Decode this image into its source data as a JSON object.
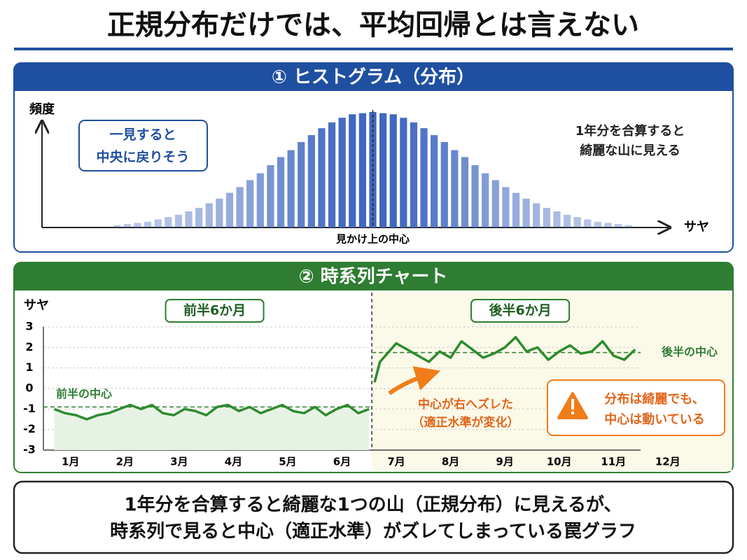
{
  "title": "正規分布だけでは、平均回帰とは言えない",
  "chart_data": [
    {
      "type": "bar",
      "panel_title": "① ヒストグラム（分布）",
      "y_label": "頻度",
      "x_label": "サヤ",
      "color": "#3f66c0",
      "values": [
        2,
        3,
        4,
        5,
        7,
        9,
        11,
        14,
        17,
        21,
        25,
        30,
        35,
        41,
        47,
        54,
        61,
        67,
        74,
        80,
        86,
        91,
        95,
        98,
        99,
        100,
        99,
        98,
        95,
        91,
        86,
        80,
        74,
        67,
        61,
        54,
        47,
        41,
        35,
        30,
        25,
        21,
        17,
        14,
        11,
        9,
        7,
        5,
        4,
        3,
        2
      ],
      "center_label": "見かけ上の中心",
      "callout": [
        "一見すると",
        "中央に戻りそう"
      ],
      "note": [
        "1年分を合算すると",
        "綺麗な山に見える"
      ]
    },
    {
      "type": "line",
      "panel_title": "② 時系列チャート",
      "y_label": "サヤ",
      "ylim": [
        -3,
        3
      ],
      "yticks": [
        -3,
        -2,
        -1,
        0,
        1,
        2,
        3
      ],
      "xlim": [
        0.5,
        11.5
      ],
      "xticks": [
        {
          "value": 1,
          "label": "1月"
        },
        {
          "value": 2,
          "label": "2月"
        },
        {
          "value": 3,
          "label": "3月"
        },
        {
          "value": 4,
          "label": "4月"
        },
        {
          "value": 5,
          "label": "5月"
        },
        {
          "value": 6,
          "label": "6月"
        },
        {
          "value": 7,
          "label": "7月"
        },
        {
          "value": 8,
          "label": "8月"
        },
        {
          "value": 9,
          "label": "9月"
        },
        {
          "value": 10,
          "label": "10月"
        },
        {
          "value": 11,
          "label": "11月"
        },
        {
          "value": 12,
          "label": "12月"
        }
      ],
      "grid": true,
      "series": [
        {
          "name": "前半6か月",
          "color": "#2e8b2e",
          "center": {
            "value": -0.9,
            "label": "前半の中心"
          },
          "x": [
            0.7,
            0.9,
            1.1,
            1.3,
            1.5,
            1.7,
            1.9,
            2.1,
            2.3,
            2.5,
            2.7,
            2.9,
            3.1,
            3.3,
            3.5,
            3.7,
            3.9,
            4.1,
            4.3,
            4.5,
            4.7,
            4.9,
            5.1,
            5.3,
            5.5,
            5.7,
            5.9,
            6.1,
            6.3,
            6.5
          ],
          "values": [
            -1.0,
            -1.2,
            -1.3,
            -1.5,
            -1.3,
            -1.2,
            -1.0,
            -0.8,
            -1.0,
            -0.8,
            -1.2,
            -1.3,
            -1.0,
            -1.1,
            -1.3,
            -0.9,
            -0.8,
            -1.1,
            -0.9,
            -1.2,
            -1.0,
            -0.8,
            -1.1,
            -1.2,
            -0.9,
            -1.3,
            -1.0,
            -0.8,
            -1.2,
            -1.0
          ]
        },
        {
          "name": "後半6か月",
          "color": "#2e8b2e",
          "center": {
            "value": 1.75,
            "label": "後半の中心"
          },
          "x": [
            6.6,
            6.7,
            6.8,
            7.0,
            7.2,
            7.4,
            7.6,
            7.8,
            8.0,
            8.2,
            8.4,
            8.6,
            8.8,
            9.0,
            9.2,
            9.4,
            9.6,
            9.8,
            10.0,
            10.2,
            10.4,
            10.6,
            10.8,
            11.0,
            11.2,
            11.4
          ],
          "values": [
            0.3,
            1.3,
            1.6,
            2.2,
            1.9,
            1.6,
            1.3,
            1.8,
            1.5,
            2.3,
            1.9,
            1.5,
            1.7,
            2.0,
            2.5,
            1.8,
            2.0,
            1.4,
            1.8,
            2.1,
            1.7,
            1.8,
            2.3,
            1.6,
            1.4,
            1.9
          ]
        }
      ],
      "shift_note": [
        "中心が右へズレた",
        "（適正水準が変化）"
      ],
      "warning": [
        "分布は綺麗でも、",
        "中心は動いている"
      ]
    }
  ],
  "footer": [
    "1年分を合算すると綺麗な1つの山（正規分布）に見えるが、",
    "時系列で見ると中心（適正水準）がズレてしまっている罠グラフ"
  ]
}
